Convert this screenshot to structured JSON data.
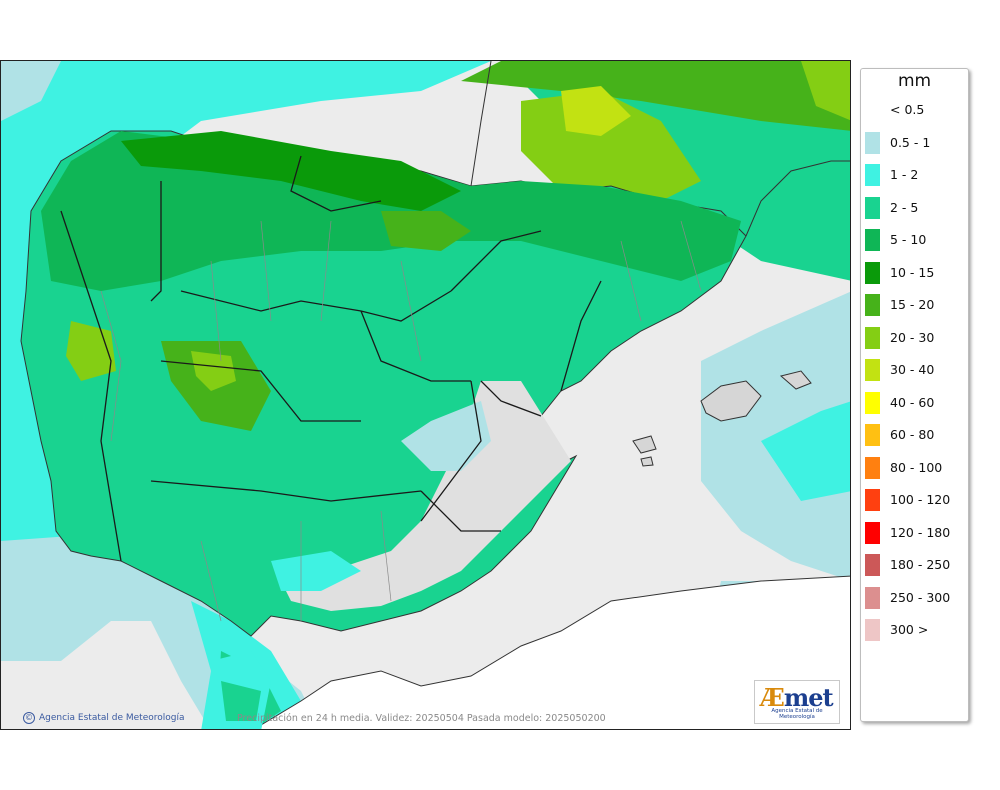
{
  "map": {
    "caption": "Precipitación en 24 h media. Validez: 20250504 Pasada modelo: 2025050200",
    "credit": "Agencia Estatal de Meteorología",
    "credit_symbol": "©",
    "logo_prefix": "Æ",
    "logo_rest": "met",
    "logo_subtitle": "Agencia Estatal de Meteorología"
  },
  "legend": {
    "title": "mm",
    "items": [
      {
        "label": "< 0.5",
        "color": "#ffffff"
      },
      {
        "label": "0.5 - 1",
        "color": "#b0e2e6"
      },
      {
        "label": "1 - 2",
        "color": "#3ff2e2"
      },
      {
        "label": "2 - 5",
        "color": "#19d390"
      },
      {
        "label": "5 - 10",
        "color": "#0fb656"
      },
      {
        "label": "10 - 15",
        "color": "#0a9a0a"
      },
      {
        "label": "15 - 20",
        "color": "#46b21a"
      },
      {
        "label": "20 - 30",
        "color": "#84ce14"
      },
      {
        "label": "30 - 40",
        "color": "#c2e212"
      },
      {
        "label": "40 - 60",
        "color": "#ffff00"
      },
      {
        "label": "60 - 80",
        "color": "#ffc012"
      },
      {
        "label": "80 - 100",
        "color": "#ff8010"
      },
      {
        "label": "100 - 120",
        "color": "#ff4010"
      },
      {
        "label": "120 - 180",
        "color": "#ff0000"
      },
      {
        "label": "180 - 250",
        "color": "#cc5858"
      },
      {
        "label": "250 - 300",
        "color": "#dc8f8f"
      },
      {
        "label": "300 >",
        "color": "#eec6c6"
      }
    ]
  }
}
